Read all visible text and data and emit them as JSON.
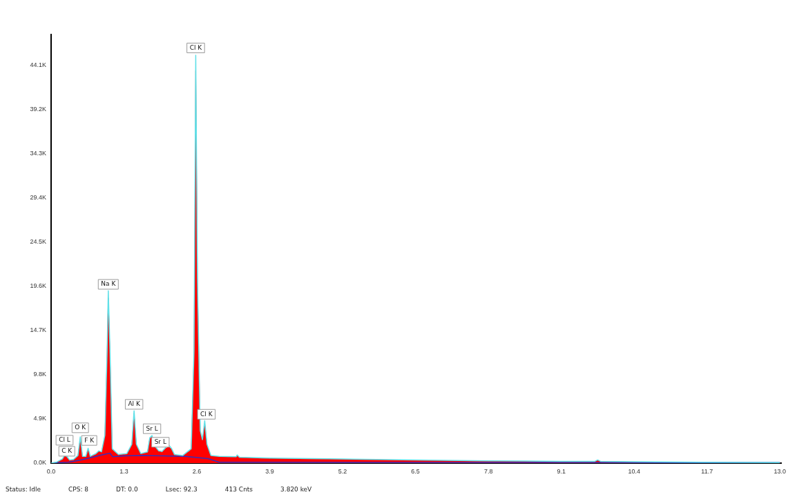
{
  "chart_data": {
    "type": "area",
    "xlim": [
      0,
      13.03
    ],
    "ylim": [
      0,
      47500
    ],
    "xticks": [
      {
        "value": 0,
        "label": "0.0"
      },
      1.3,
      2.6,
      3.9,
      5.2,
      6.5,
      7.8,
      9.1,
      10.4,
      11.7,
      {
        "value": 13,
        "label": "13.0"
      }
    ],
    "yticks": [
      {
        "value": 0,
        "label": "0.0K"
      },
      {
        "value": 4900,
        "label": "4.9K"
      },
      {
        "value": 9800,
        "label": "9.8K"
      },
      {
        "value": 14700,
        "label": "14.7K"
      },
      {
        "value": 19600,
        "label": "19.6K"
      },
      {
        "value": 24500,
        "label": "24.5K"
      },
      {
        "value": 29400,
        "label": "29.4K"
      },
      {
        "value": 34300,
        "label": "34.3K"
      },
      {
        "value": 39200,
        "label": "39.2K"
      },
      {
        "value": 44100,
        "label": "44.1K"
      }
    ],
    "x": [
      0,
      0.1,
      0.2,
      0.24,
      0.28,
      0.33,
      0.4,
      0.48,
      0.52,
      0.56,
      0.62,
      0.66,
      0.7,
      0.8,
      0.85,
      0.9,
      0.96,
      1.0,
      1.02,
      1.05,
      1.09,
      1.2,
      1.35,
      1.44,
      1.48,
      1.52,
      1.6,
      1.72,
      1.76,
      1.8,
      1.85,
      1.92,
      1.98,
      2.04,
      2.1,
      2.15,
      2.2,
      2.35,
      2.5,
      2.55,
      2.58,
      2.61,
      2.66,
      2.7,
      2.74,
      2.78,
      2.85,
      3.0,
      3.3,
      3.32,
      3.36,
      3.9,
      5.2,
      6.5,
      7.8,
      9.1,
      9.7,
      9.75,
      9.8,
      10.4,
      11.7,
      13.0
    ],
    "series": [
      {
        "color": "#ff0000",
        "values": [
          0,
          100,
          400,
          800,
          700,
          300,
          350,
          800,
          2700,
          700,
          700,
          1500,
          700,
          1000,
          1300,
          1200,
          3000,
          12000,
          18300,
          12000,
          1500,
          900,
          1000,
          2000,
          5500,
          2000,
          1000,
          1200,
          2700,
          2900,
          1800,
          1300,
          1200,
          1600,
          1800,
          1500,
          900,
          800,
          1500,
          12000,
          43500,
          20000,
          3500,
          2500,
          4400,
          2000,
          800,
          700,
          650,
          850,
          600,
          500,
          400,
          300,
          200,
          150,
          150,
          300,
          150,
          100,
          60,
          30
        ]
      },
      {
        "type": "line",
        "color": "#5fe0e8",
        "values": [
          0,
          120,
          450,
          850,
          750,
          350,
          400,
          850,
          2900,
          750,
          750,
          1650,
          750,
          1050,
          1350,
          1250,
          3100,
          12500,
          19100,
          12500,
          1600,
          950,
          1050,
          2100,
          5800,
          2100,
          1050,
          1250,
          2800,
          3050,
          1900,
          1350,
          1300,
          1700,
          2000,
          1600,
          950,
          850,
          1600,
          12500,
          45200,
          20500,
          3600,
          2600,
          4700,
          2100,
          850,
          750,
          700,
          900,
          650,
          550,
          450,
          350,
          250,
          200,
          200,
          350,
          200,
          150,
          100,
          60
        ]
      },
      {
        "type": "line",
        "color": "#3030c0",
        "x": [
          0,
          0.3,
          0.5,
          0.7,
          0.9,
          1.05,
          1.1,
          1.3,
          1.6,
          2.0,
          2.4,
          2.8,
          3.0,
          4.0,
          13.0
        ],
        "values": [
          0,
          100,
          300,
          600,
          900,
          1100,
          700,
          800,
          850,
          800,
          750,
          500,
          100,
          90,
          60
        ]
      }
    ],
    "annotations": [
      {
        "text": "C K",
        "x": 0.28,
        "y": 700
      },
      {
        "text": "Cl L",
        "x": 0.24,
        "y": 800
      },
      {
        "text": "O K",
        "x": 0.52,
        "y": 3300
      },
      {
        "text": "F K",
        "x": 0.68,
        "y": 1900
      },
      {
        "text": "Na K",
        "x": 1.02,
        "y": 19200
      },
      {
        "text": "Al K",
        "x": 1.48,
        "y": 5900
      },
      {
        "text": "Sr L",
        "x": 1.8,
        "y": 3200
      },
      {
        "text": "Sr L",
        "x": 1.95,
        "y": 1700
      },
      {
        "text": "Cl K",
        "x": 2.58,
        "y": 45400
      },
      {
        "text": "Cl K",
        "x": 2.77,
        "y": 4800
      },
      "Status: Idle",
      "CPS: 8",
      "DT: 0.0",
      "Lsec: 92.3",
      "413 Cnts",
      "3.820 keV"
    ],
    "grid": false,
    "legend": false
  }
}
